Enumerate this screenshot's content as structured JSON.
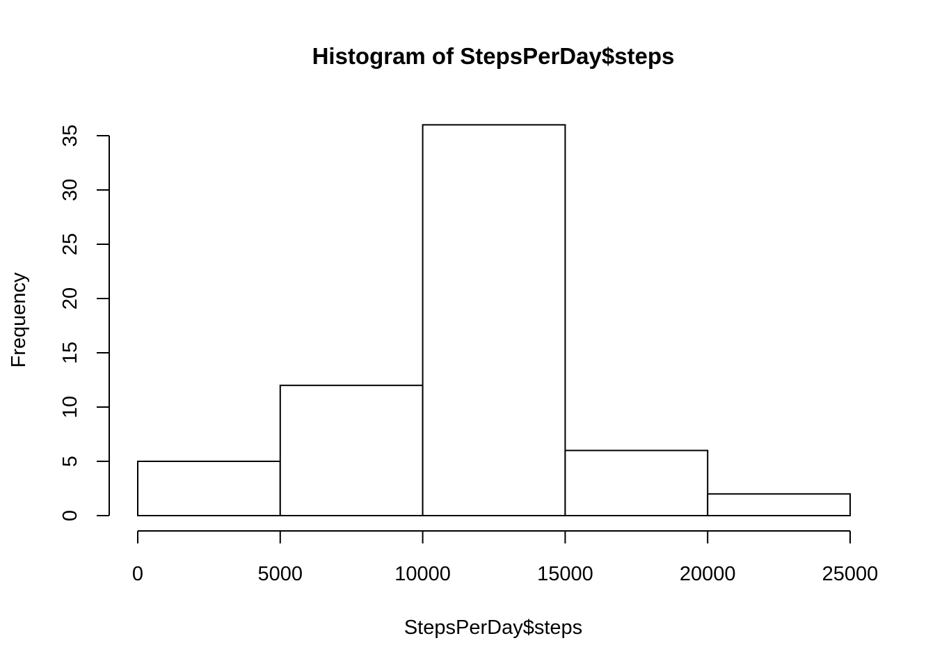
{
  "chart_data": {
    "type": "bar",
    "subtype": "histogram",
    "title": "Histogram of StepsPerDay$steps",
    "xlabel": "StepsPerDay$steps",
    "ylabel": "Frequency",
    "bins": [
      {
        "from": 0,
        "to": 5000,
        "count": 5
      },
      {
        "from": 5000,
        "to": 10000,
        "count": 12
      },
      {
        "from": 10000,
        "to": 15000,
        "count": 36
      },
      {
        "from": 15000,
        "to": 20000,
        "count": 6
      },
      {
        "from": 20000,
        "to": 25000,
        "count": 2
      }
    ],
    "xticks": [
      "0",
      "5000",
      "10000",
      "15000",
      "20000",
      "25000"
    ],
    "yticks": [
      "0",
      "5",
      "10",
      "15",
      "20",
      "25",
      "30",
      "35"
    ],
    "xlim": [
      0,
      25000
    ],
    "ylim": [
      0,
      35
    ],
    "grid": false,
    "bar_fill": "#ffffff",
    "bar_stroke": "#000000"
  }
}
